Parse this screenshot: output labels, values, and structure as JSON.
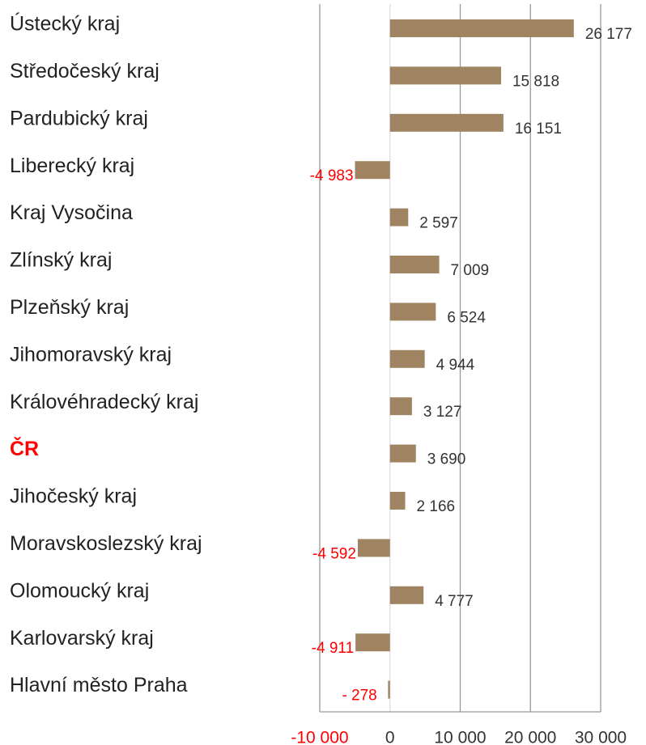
{
  "chart_data": {
    "type": "barh",
    "categories": [
      "Ústecký kraj",
      "Středočeský kraj",
      "Pardubický kraj",
      "Liberecký kraj",
      "Kraj Vysočina",
      "Zlínský kraj",
      "Plzeňský kraj",
      "Jihomoravský kraj",
      "Královéhradecký kraj",
      "ČR",
      "Jihočeský kraj",
      "Moravskoslezský kraj",
      "Olomoucký kraj",
      "Karlovarský kraj",
      "Hlavní město Praha"
    ],
    "values": [
      26177,
      15818,
      16151,
      -4983,
      2597,
      7009,
      6524,
      4944,
      3127,
      3690,
      2166,
      -4592,
      4777,
      -4911,
      -278
    ],
    "value_labels": [
      "26 177",
      "15 818",
      "16 151",
      "-4 983",
      "2 597",
      "7 009",
      "6 524",
      "4 944",
      "3 127",
      "3 690",
      "2 166",
      "-4 592",
      "4 777",
      "-4 911",
      "- 278"
    ],
    "color": "#a08461",
    "negative_label_color": "#ff0000",
    "xlim": [
      -10000,
      30000
    ],
    "xticks": [
      {
        "value": -10000,
        "label": "-10 000"
      },
      0,
      {
        "value": 10000,
        "label": "10 000"
      },
      {
        "value": 20000,
        "label": "20 000"
      },
      {
        "value": 30000,
        "label": "30 000"
      }
    ],
    "grid": true
  }
}
